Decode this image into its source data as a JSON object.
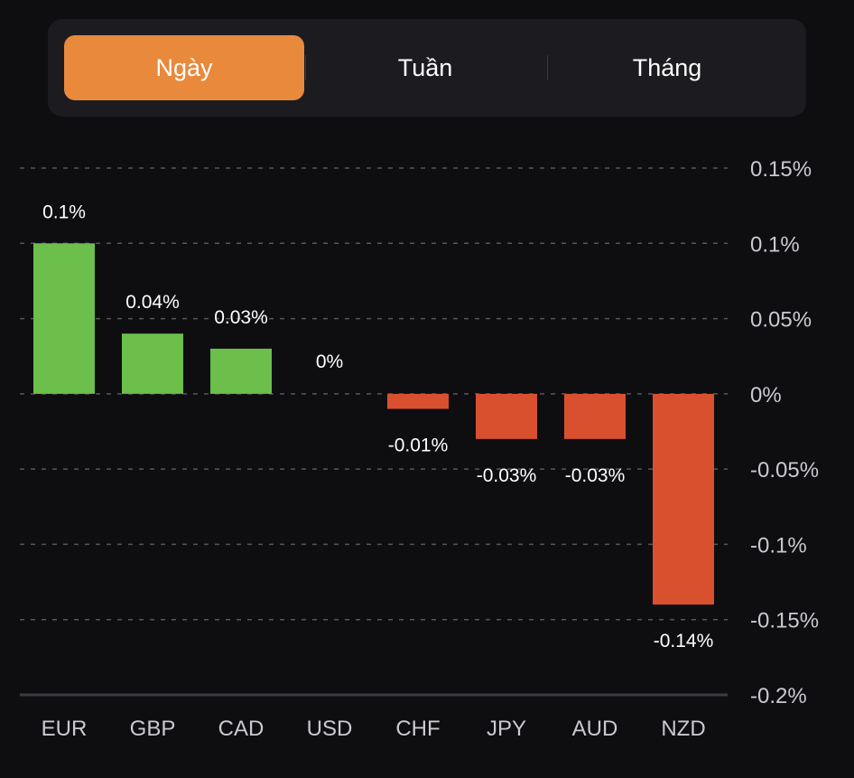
{
  "period_selector": {
    "options": [
      {
        "label": "Ngày",
        "active": true
      },
      {
        "label": "Tuần",
        "active": false
      },
      {
        "label": "Tháng",
        "active": false
      }
    ]
  },
  "colors": {
    "accent": "#e8893b",
    "positive": "#6cbf4b",
    "negative": "#d9502e",
    "grid": "#55555c",
    "axis_text": "#c9c9cf",
    "label_text": "#ffffff",
    "background": "#0e0e11",
    "panel": "#1c1c20"
  },
  "chart_data": {
    "type": "bar",
    "title": "",
    "xlabel": "",
    "ylabel": "",
    "categories": [
      "EUR",
      "GBP",
      "CAD",
      "USD",
      "CHF",
      "JPY",
      "AUD",
      "NZD"
    ],
    "values": [
      0.1,
      0.04,
      0.03,
      0,
      -0.01,
      -0.03,
      -0.03,
      -0.14
    ],
    "value_labels": [
      "0.1%",
      "0.04%",
      "0.03%",
      "0%",
      "-0.01%",
      "-0.03%",
      "-0.03%",
      "-0.14%"
    ],
    "ylim": [
      -0.2,
      0.15
    ],
    "yticks": [
      0.15,
      0.1,
      0.05,
      0,
      -0.05,
      -0.1,
      -0.15,
      -0.2
    ],
    "ytick_labels": [
      "0.15%",
      "0.1%",
      "0.05%",
      "0%",
      "-0.05%",
      "-0.1%",
      "-0.15%",
      "-0.2%"
    ],
    "y_axis_position": "right",
    "grid": true,
    "grid_style": "dashed",
    "legend": "none"
  }
}
